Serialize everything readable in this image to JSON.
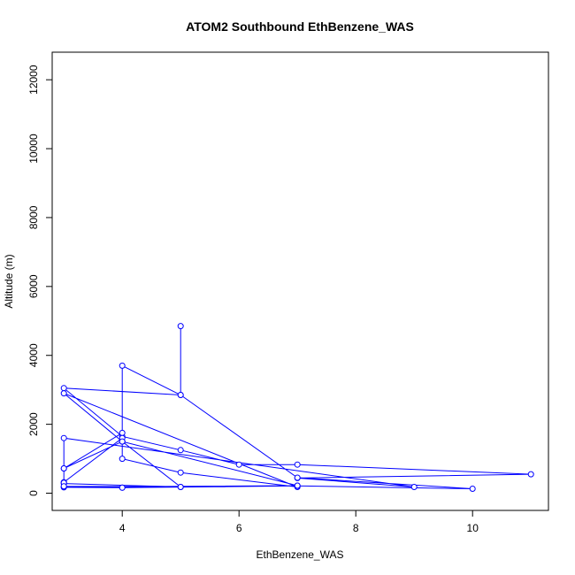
{
  "chart_data": {
    "type": "line",
    "title": "ATOM2 Southbound EthBenzene_WAS",
    "xlabel": "EthBenzene_WAS",
    "ylabel": "Altitude (m)",
    "xlim": [
      2.8,
      11.3
    ],
    "ylim": [
      -500,
      12800
    ],
    "x_ticks": [
      4,
      6,
      8,
      10
    ],
    "y_ticks": [
      0,
      2000,
      4000,
      6000,
      8000,
      10000,
      12000
    ],
    "grid": false,
    "legend": "none",
    "line_color": "#0000ff",
    "marker": "open-circle",
    "series": [
      {
        "x": [
          5,
          5,
          3,
          4,
          5,
          6,
          7,
          11,
          7,
          9,
          3,
          3,
          4,
          4,
          5,
          7,
          3,
          4,
          5,
          3,
          3,
          4,
          4,
          5,
          7,
          10,
          7,
          4,
          4,
          3,
          3,
          3,
          4,
          7,
          3,
          3,
          5,
          7
        ],
        "y": [
          4850,
          2850,
          3050,
          1650,
          1250,
          830,
          830,
          550,
          440,
          180,
          1600,
          720,
          1750,
          1000,
          600,
          180,
          2900,
          1500,
          180,
          280,
          320,
          1600,
          3700,
          2850,
          450,
          130,
          210,
          160,
          160,
          170,
          300,
          720,
          1500,
          220,
          180,
          200,
          180,
          220
        ]
      }
    ]
  }
}
